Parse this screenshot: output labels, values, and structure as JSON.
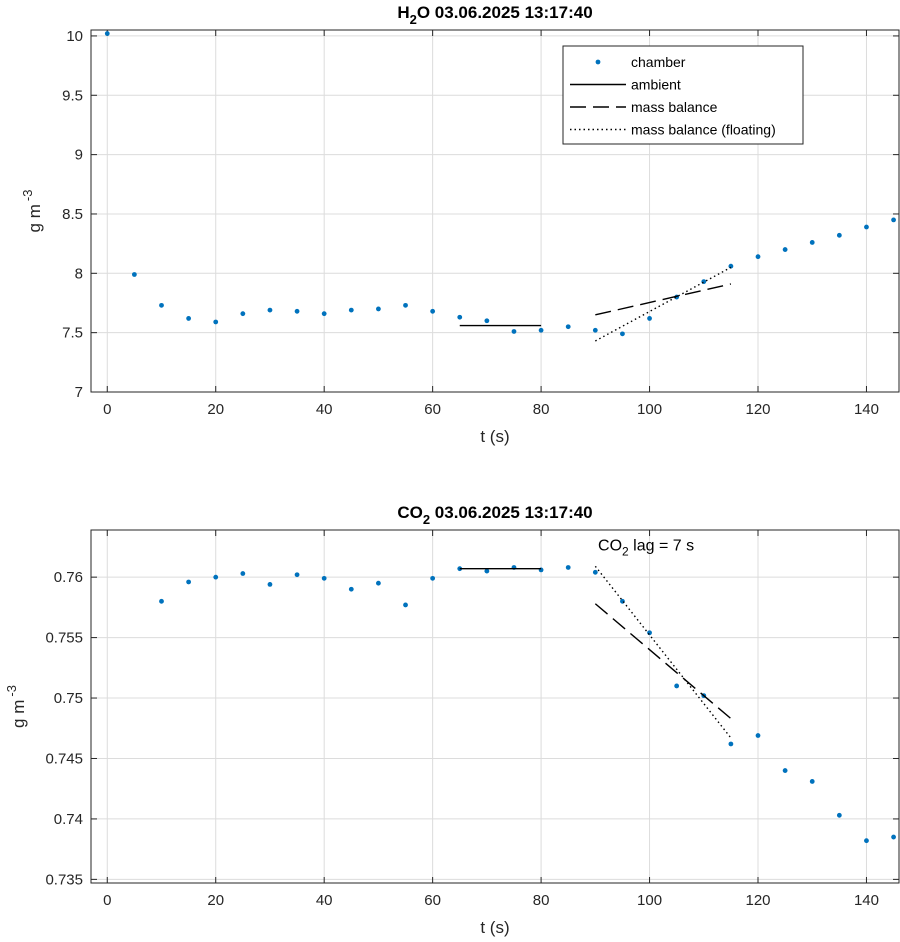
{
  "chart_data": [
    {
      "type": "scatter",
      "title": {
        "main": "H",
        "sub": "2",
        "rest": "O  03.06.2025 13:17:40"
      },
      "xlabel": "t (s)",
      "ylabel": {
        "main": "g m",
        "sup": "-3"
      },
      "xlim": [
        -3,
        146
      ],
      "ylim": [
        7,
        10.05
      ],
      "xticks": [
        0,
        20,
        40,
        60,
        80,
        100,
        120,
        140
      ],
      "xtick_labels": [
        "0",
        "20",
        "40",
        "60",
        "80",
        "100",
        "120",
        "140"
      ],
      "yticks": [
        7,
        7.5,
        8,
        8.5,
        9,
        9.5,
        10
      ],
      "ytick_labels": [
        "7",
        "7.5",
        "8",
        "8.5",
        "9",
        "9.5",
        "10"
      ],
      "grid": true,
      "legend_position": "top-right",
      "legend": [
        "chamber",
        "ambient",
        "mass balance",
        "mass balance (floating)"
      ],
      "series": [
        {
          "name": "chamber",
          "style": "dots",
          "color": "#0072BD",
          "x": [
            0,
            5,
            10,
            15,
            20,
            25,
            30,
            35,
            40,
            45,
            50,
            55,
            60,
            65,
            70,
            75,
            80,
            85,
            90,
            95,
            100,
            105,
            110,
            115,
            120,
            125,
            130,
            135,
            140,
            145
          ],
          "y": [
            10.02,
            7.99,
            7.73,
            7.62,
            7.59,
            7.66,
            7.69,
            7.68,
            7.66,
            7.69,
            7.7,
            7.73,
            7.68,
            7.63,
            7.6,
            7.51,
            7.52,
            7.55,
            7.52,
            7.49,
            7.62,
            7.8,
            7.93,
            8.06,
            8.14,
            8.2,
            8.26,
            8.32,
            8.39,
            8.45
          ]
        },
        {
          "name": "ambient",
          "style": "solid",
          "color": "#000000",
          "x": [
            65,
            80
          ],
          "y": [
            7.56,
            7.56
          ]
        },
        {
          "name": "mass balance",
          "style": "dashed",
          "color": "#000000",
          "x": [
            90,
            115
          ],
          "y": [
            7.65,
            7.91
          ]
        },
        {
          "name": "mass balance (floating)",
          "style": "dotted",
          "color": "#000000",
          "x": [
            90,
            115
          ],
          "y": [
            7.43,
            8.05
          ]
        }
      ]
    },
    {
      "type": "scatter",
      "title": {
        "main": "CO",
        "sub": "2",
        "rest": "  03.06.2025 13:17:40"
      },
      "xlabel": "t (s)",
      "ylabel": {
        "main": "g m",
        "sup": "-3"
      },
      "xlim": [
        -3,
        146
      ],
      "ylim": [
        0.7347,
        0.7639
      ],
      "xticks": [
        0,
        20,
        40,
        60,
        80,
        100,
        120,
        140
      ],
      "xtick_labels": [
        "0",
        "20",
        "40",
        "60",
        "80",
        "100",
        "120",
        "140"
      ],
      "yticks": [
        0.735,
        0.74,
        0.745,
        0.75,
        0.755,
        0.76
      ],
      "ytick_labels": [
        "0.735",
        "0.74",
        "0.745",
        "0.75",
        "0.755",
        "0.76"
      ],
      "grid": true,
      "annotation": {
        "main": "CO",
        "sub": "2",
        "rest": " lag = 7 s",
        "x": 90.5,
        "y": 0.7622
      },
      "series": [
        {
          "name": "chamber",
          "style": "dots",
          "color": "#0072BD",
          "x": [
            10,
            15,
            20,
            25,
            30,
            35,
            40,
            45,
            50,
            55,
            60,
            65,
            70,
            75,
            80,
            85,
            90,
            95,
            100,
            105,
            110,
            115,
            120,
            125,
            130,
            135,
            140,
            145
          ],
          "y": [
            0.758,
            0.7596,
            0.76,
            0.7603,
            0.7594,
            0.7602,
            0.7599,
            0.759,
            0.7595,
            0.7577,
            0.7599,
            0.7607,
            0.7605,
            0.7608,
            0.7606,
            0.7608,
            0.7604,
            0.758,
            0.7554,
            0.751,
            0.7502,
            0.7462,
            0.7469,
            0.744,
            0.7431,
            0.7403,
            0.7382,
            0.7385
          ]
        },
        {
          "name": "ambient",
          "style": "solid",
          "color": "#000000",
          "x": [
            65,
            80
          ],
          "y": [
            0.7607,
            0.7607
          ]
        },
        {
          "name": "mass balance",
          "style": "dashed",
          "color": "#000000",
          "x": [
            90,
            115
          ],
          "y": [
            0.7578,
            0.7483
          ]
        },
        {
          "name": "mass balance (floating)",
          "style": "dotted",
          "color": "#000000",
          "x": [
            90,
            115
          ],
          "y": [
            0.7609,
            0.7467
          ]
        }
      ]
    }
  ]
}
